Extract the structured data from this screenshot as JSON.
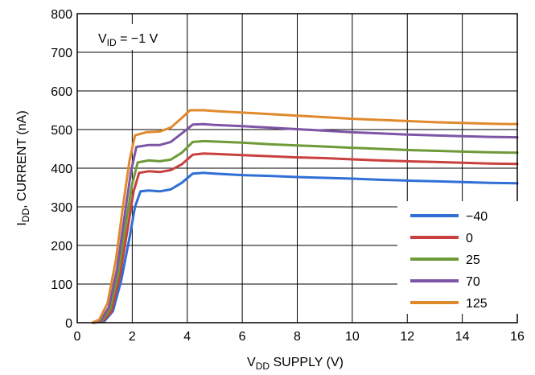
{
  "chart_data": {
    "type": "line",
    "title": "",
    "xlabel": {
      "main": "V",
      "sub": "DD",
      "rest": " SUPPLY (V)"
    },
    "ylabel": {
      "main": "I",
      "sub": "DD",
      "rest": ", CURRENT (nA)"
    },
    "annotation": {
      "main": "V",
      "sub": "ID",
      "rest": " = −1 V"
    },
    "xlim": [
      0,
      16
    ],
    "ylim": [
      0,
      800
    ],
    "xticks": [
      "0",
      "2",
      "4",
      "6",
      "8",
      "10",
      "12",
      "14",
      "16"
    ],
    "yticks": [
      "0",
      "100",
      "200",
      "300",
      "400",
      "500",
      "600",
      "700",
      "800"
    ],
    "grid": true,
    "legend_position": "bottom-right",
    "series": [
      {
        "name": "−40",
        "color": "#2f6fd6",
        "points": [
          [
            0.6,
            0
          ],
          [
            1.0,
            5
          ],
          [
            1.3,
            30
          ],
          [
            1.6,
            110
          ],
          [
            1.9,
            220
          ],
          [
            2.1,
            300
          ],
          [
            2.3,
            340
          ],
          [
            2.6,
            342
          ],
          [
            3.0,
            340
          ],
          [
            3.4,
            345
          ],
          [
            3.8,
            362
          ],
          [
            4.2,
            386
          ],
          [
            4.6,
            388
          ],
          [
            5,
            386
          ],
          [
            6,
            382
          ],
          [
            7,
            380
          ],
          [
            8,
            377
          ],
          [
            9,
            375
          ],
          [
            10,
            373
          ],
          [
            11,
            370
          ],
          [
            12,
            368
          ],
          [
            13,
            366
          ],
          [
            14,
            364
          ],
          [
            15,
            362
          ],
          [
            16,
            361
          ]
        ]
      },
      {
        "name": "0",
        "color": "#c9403f",
        "points": [
          [
            0.6,
            0
          ],
          [
            0.95,
            5
          ],
          [
            1.25,
            30
          ],
          [
            1.55,
            120
          ],
          [
            1.85,
            250
          ],
          [
            2.05,
            340
          ],
          [
            2.25,
            388
          ],
          [
            2.6,
            392
          ],
          [
            3.0,
            390
          ],
          [
            3.4,
            395
          ],
          [
            3.8,
            410
          ],
          [
            4.2,
            435
          ],
          [
            4.6,
            438
          ],
          [
            5,
            437
          ],
          [
            6,
            434
          ],
          [
            7,
            431
          ],
          [
            8,
            428
          ],
          [
            9,
            426
          ],
          [
            10,
            423
          ],
          [
            11,
            420
          ],
          [
            12,
            418
          ],
          [
            13,
            416
          ],
          [
            14,
            414
          ],
          [
            15,
            412
          ],
          [
            16,
            411
          ]
        ]
      },
      {
        "name": "25",
        "color": "#6f9a38",
        "points": [
          [
            0.6,
            0
          ],
          [
            0.9,
            5
          ],
          [
            1.2,
            35
          ],
          [
            1.5,
            130
          ],
          [
            1.8,
            270
          ],
          [
            2.0,
            360
          ],
          [
            2.2,
            415
          ],
          [
            2.6,
            420
          ],
          [
            3.0,
            418
          ],
          [
            3.4,
            422
          ],
          [
            3.8,
            440
          ],
          [
            4.2,
            468
          ],
          [
            4.6,
            470
          ],
          [
            5,
            469
          ],
          [
            6,
            466
          ],
          [
            7,
            462
          ],
          [
            8,
            459
          ],
          [
            9,
            456
          ],
          [
            10,
            453
          ],
          [
            11,
            450
          ],
          [
            12,
            447
          ],
          [
            13,
            445
          ],
          [
            14,
            443
          ],
          [
            15,
            441
          ],
          [
            16,
            440
          ]
        ]
      },
      {
        "name": "70",
        "color": "#7e55a6",
        "points": [
          [
            0.6,
            0
          ],
          [
            0.85,
            5
          ],
          [
            1.15,
            40
          ],
          [
            1.45,
            140
          ],
          [
            1.75,
            290
          ],
          [
            1.95,
            390
          ],
          [
            2.15,
            455
          ],
          [
            2.6,
            460
          ],
          [
            3.0,
            460
          ],
          [
            3.4,
            468
          ],
          [
            3.8,
            490
          ],
          [
            4.2,
            513
          ],
          [
            4.6,
            514
          ],
          [
            5,
            512
          ],
          [
            6,
            509
          ],
          [
            7,
            505
          ],
          [
            8,
            501
          ],
          [
            9,
            497
          ],
          [
            10,
            493
          ],
          [
            11,
            490
          ],
          [
            12,
            487
          ],
          [
            13,
            485
          ],
          [
            14,
            483
          ],
          [
            15,
            481
          ],
          [
            16,
            480
          ]
        ]
      },
      {
        "name": "125",
        "color": "#e08a2e",
        "points": [
          [
            0.55,
            0
          ],
          [
            0.8,
            8
          ],
          [
            1.1,
            50
          ],
          [
            1.4,
            160
          ],
          [
            1.7,
            320
          ],
          [
            1.9,
            420
          ],
          [
            2.1,
            485
          ],
          [
            2.5,
            493
          ],
          [
            3.0,
            495
          ],
          [
            3.4,
            505
          ],
          [
            3.8,
            530
          ],
          [
            4.1,
            550
          ],
          [
            4.6,
            550
          ],
          [
            5,
            548
          ],
          [
            6,
            544
          ],
          [
            7,
            540
          ],
          [
            8,
            536
          ],
          [
            9,
            532
          ],
          [
            10,
            528
          ],
          [
            11,
            525
          ],
          [
            12,
            522
          ],
          [
            13,
            519
          ],
          [
            14,
            517
          ],
          [
            15,
            515
          ],
          [
            16,
            514
          ]
        ]
      }
    ]
  }
}
